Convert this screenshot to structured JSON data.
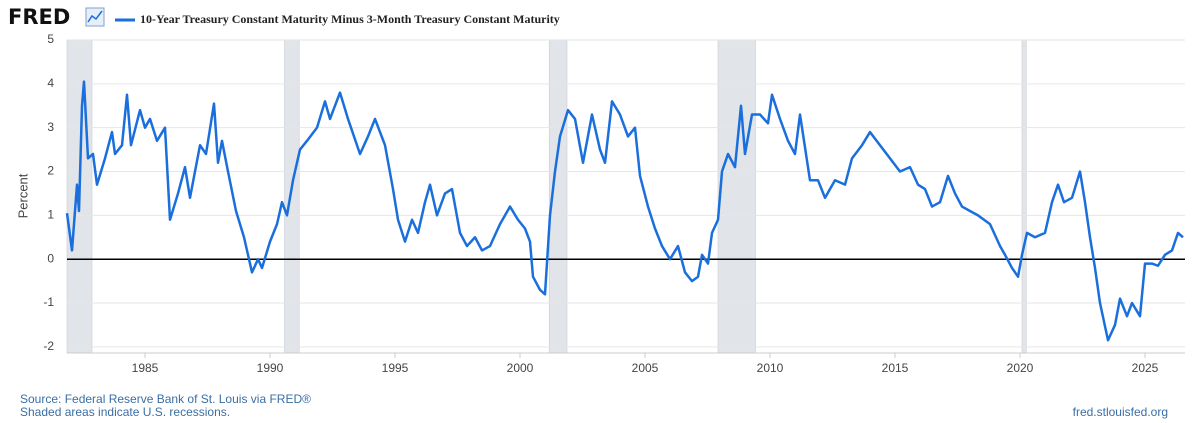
{
  "brand": "FRED",
  "chart_data": {
    "type": "line",
    "ylabel": "Percent",
    "series": [
      {
        "name": "10-Year Treasury Constant Maturity Minus 3-Month Treasury Constant Maturity",
        "color": "#1a6fdc",
        "x": [
          1981.88,
          1982.08,
          1982.28,
          1982.36,
          1982.48,
          1982.56,
          1982.72,
          1982.92,
          1983.08,
          1983.4,
          1983.68,
          1983.8,
          1984.08,
          1984.28,
          1984.44,
          1984.8,
          1985,
          1985.2,
          1985.48,
          1985.8,
          1986,
          1986.32,
          1986.6,
          1986.8,
          1987.2,
          1987.44,
          1987.76,
          1987.92,
          1988.08,
          1988.32,
          1988.64,
          1988.96,
          1989.28,
          1989.52,
          1989.68,
          1990,
          1990.28,
          1990.48,
          1990.68,
          1990.92,
          1991.2,
          1991.48,
          1991.88,
          1992.2,
          1992.4,
          1992.8,
          1993.12,
          1993.6,
          1993.92,
          1994.2,
          1994.6,
          1994.92,
          1995.12,
          1995.4,
          1995.68,
          1995.92,
          1996.2,
          1996.4,
          1996.68,
          1997,
          1997.28,
          1997.6,
          1997.88,
          1998.2,
          1998.48,
          1998.8,
          1999.2,
          1999.6,
          1999.92,
          2000.2,
          2000.4,
          2000.52,
          2000.8,
          2001,
          2001.2,
          2001.4,
          2001.6,
          2001.92,
          2002.2,
          2002.52,
          2002.88,
          2003.2,
          2003.4,
          2003.68,
          2004,
          2004.32,
          2004.6,
          2004.8,
          2005.12,
          2005.4,
          2005.68,
          2006,
          2006.32,
          2006.6,
          2006.88,
          2007.12,
          2007.28,
          2007.52,
          2007.68,
          2007.92,
          2008.08,
          2008.32,
          2008.6,
          2008.84,
          2009,
          2009.28,
          2009.6,
          2009.92,
          2010.08,
          2010.4,
          2010.72,
          2011,
          2011.2,
          2011.6,
          2011.92,
          2012.2,
          2012.6,
          2013,
          2013.28,
          2013.68,
          2014,
          2014.4,
          2014.8,
          2015.2,
          2015.6,
          2015.92,
          2016.2,
          2016.48,
          2016.8,
          2017.12,
          2017.4,
          2017.68,
          2018,
          2018.32,
          2018.8,
          2019.2,
          2019.4,
          2019.68,
          2019.92,
          2020.08,
          2020.28,
          2020.6,
          2021,
          2021.28,
          2021.52,
          2021.76,
          2022.08,
          2022.4,
          2022.6,
          2022.8,
          2023,
          2023.2,
          2023.52,
          2023.8,
          2024,
          2024.28,
          2024.48,
          2024.8,
          2025,
          2025.28,
          2025.52,
          2025.8,
          2026.08,
          2026.32,
          2026.52
        ],
        "values": [
          1.05,
          0.2,
          1.7,
          1.1,
          3.5,
          4.05,
          2.3,
          2.4,
          1.7,
          2.3,
          2.9,
          2.4,
          2.6,
          3.75,
          2.6,
          3.4,
          3.0,
          3.2,
          2.7,
          3.0,
          0.9,
          1.5,
          2.1,
          1.4,
          2.6,
          2.4,
          3.55,
          2.2,
          2.7,
          2.0,
          1.1,
          0.5,
          -0.3,
          0.0,
          -0.2,
          0.4,
          0.8,
          1.3,
          1.0,
          1.8,
          2.5,
          2.7,
          3.0,
          3.6,
          3.2,
          3.8,
          3.2,
          2.4,
          2.8,
          3.2,
          2.6,
          1.6,
          0.9,
          0.4,
          0.9,
          0.6,
          1.3,
          1.7,
          1.0,
          1.5,
          1.6,
          0.6,
          0.3,
          0.5,
          0.2,
          0.3,
          0.8,
          1.2,
          0.9,
          0.7,
          0.4,
          -0.4,
          -0.7,
          -0.8,
          1.0,
          2.0,
          2.8,
          3.4,
          3.2,
          2.2,
          3.3,
          2.5,
          2.2,
          3.6,
          3.3,
          2.8,
          3.0,
          1.9,
          1.2,
          0.7,
          0.3,
          0.0,
          0.3,
          -0.3,
          -0.5,
          -0.4,
          0.1,
          -0.1,
          0.6,
          0.9,
          2.0,
          2.4,
          2.1,
          3.5,
          2.4,
          3.3,
          3.3,
          3.1,
          3.75,
          3.2,
          2.7,
          2.4,
          3.3,
          1.8,
          1.8,
          1.4,
          1.8,
          1.7,
          2.3,
          2.6,
          2.9,
          2.6,
          2.3,
          2.0,
          2.1,
          1.7,
          1.6,
          1.2,
          1.3,
          1.9,
          1.5,
          1.2,
          1.1,
          1.0,
          0.8,
          0.3,
          0.1,
          -0.2,
          -0.4,
          0.1,
          0.6,
          0.5,
          0.6,
          1.3,
          1.7,
          1.3,
          1.4,
          2.0,
          1.3,
          0.5,
          -0.2,
          -1.0,
          -1.85,
          -1.5,
          -0.9,
          -1.3,
          -1.0,
          -1.3,
          -0.1,
          -0.1,
          -0.15,
          0.1,
          0.2,
          0.6,
          0.5
        ]
      }
    ],
    "xlim": [
      1981.88,
      2026.6
    ],
    "xticks": [
      1985,
      1990,
      1995,
      2000,
      2005,
      2010,
      2015,
      2020,
      2025
    ],
    "ylim": [
      -2.14,
      5
    ],
    "yticks": [
      -2,
      -1,
      0,
      1,
      2,
      3,
      4,
      5
    ],
    "grid": true,
    "baseline": 0,
    "recessions": [
      [
        1981.88,
        1982.88
      ],
      [
        1990.58,
        1991.17
      ],
      [
        2001.17,
        2001.88
      ],
      [
        2007.92,
        2009.42
      ],
      [
        2020.08,
        2020.25
      ]
    ]
  },
  "footer": {
    "source": "Source: Federal Reserve Bank of St. Louis via FRED®",
    "note": "Shaded areas indicate U.S. recessions.",
    "site": "fred.stlouisfed.org"
  }
}
